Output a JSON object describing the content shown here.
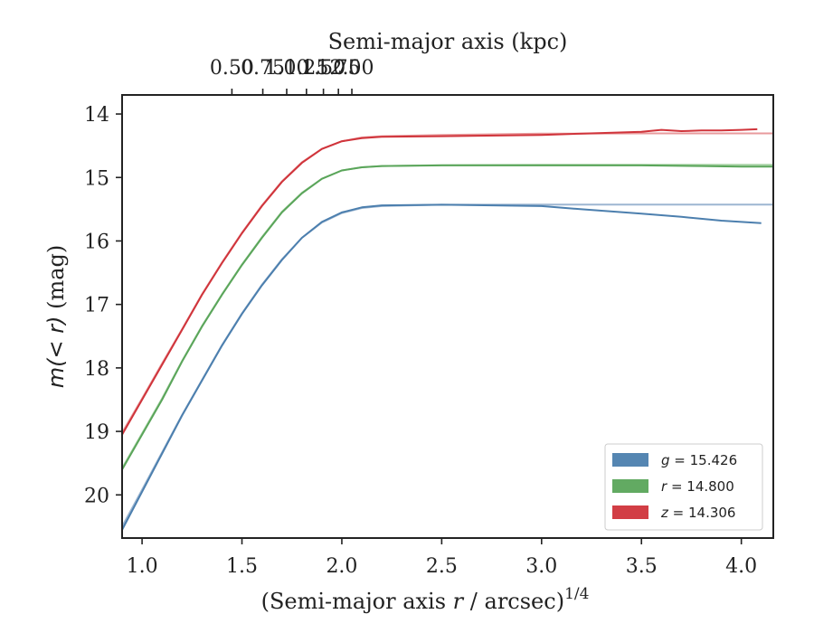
{
  "chart_data": {
    "type": "line",
    "title": "",
    "xlabel": "(Semi-major axis r / arcsec)^{1/4}",
    "xlabel_text": "(Semi-major axis",
    "xlabel_var": "r",
    "xlabel_tail": "/ arcsec)",
    "xlabel_sup": "1/4",
    "ylabel": "m(<r) (mag)",
    "ylabel_math": "m(< r)",
    "ylabel_unit": "(mag)",
    "top_xlabel": "Semi-major axis (kpc)",
    "xlim": [
      0.9,
      4.16
    ],
    "ylim": [
      20.68,
      13.7
    ],
    "y_inverted": true,
    "xticks": [
      1.0,
      1.5,
      2.0,
      2.5,
      3.0,
      3.5,
      4.0
    ],
    "xtick_labels": [
      "1.0",
      "1.5",
      "2.0",
      "2.5",
      "3.0",
      "3.5",
      "4.0"
    ],
    "yticks": [
      14,
      15,
      16,
      17,
      18,
      19,
      20
    ],
    "ytick_labels": [
      "14",
      "15",
      "16",
      "17",
      "18",
      "19",
      "20"
    ],
    "top_xticks": [
      0.5,
      0.75,
      1.0,
      1.25,
      1.5,
      1.75,
      2.0
    ],
    "top_xtick_labels": [
      "0.50",
      "0.75",
      "1.00",
      "1.25",
      "1.50",
      "1.75",
      "2.00"
    ],
    "top_axis_scale_kpc_per_arcsec": 0.1132,
    "grid": false,
    "legend_position": "lower-right",
    "series": [
      {
        "name": "g = 15.426",
        "band": "g",
        "total_mag": "15.426",
        "color": "#4c7fae",
        "fit_color": "#9db6d1",
        "x": [
          0.9,
          1.0,
          1.1,
          1.2,
          1.3,
          1.4,
          1.5,
          1.6,
          1.7,
          1.8,
          1.9,
          2.0,
          2.1,
          2.2,
          2.5,
          3.0,
          3.2,
          3.5,
          3.7,
          3.9,
          4.0,
          4.1
        ],
        "values": [
          20.55,
          19.95,
          19.35,
          18.75,
          18.2,
          17.65,
          17.15,
          16.7,
          16.3,
          15.95,
          15.7,
          15.55,
          15.47,
          15.44,
          15.43,
          15.45,
          15.5,
          15.57,
          15.62,
          15.68,
          15.7,
          15.72
        ],
        "fit_x": [
          0.9,
          1.0,
          1.1,
          1.2,
          1.3,
          1.4,
          1.5,
          1.6,
          1.7,
          1.8,
          1.9,
          2.0,
          2.1,
          2.2,
          2.5,
          3.0,
          3.5,
          4.16
        ],
        "fit_values": [
          20.5,
          19.92,
          19.33,
          18.74,
          18.19,
          17.64,
          17.14,
          16.69,
          16.29,
          15.95,
          15.71,
          15.56,
          15.48,
          15.45,
          15.43,
          15.426,
          15.426,
          15.426
        ]
      },
      {
        "name": "r = 14.800",
        "band": "r",
        "total_mag": "14.800",
        "color": "#5aa55a",
        "fit_color": "#a8d3a6",
        "x": [
          0.9,
          1.0,
          1.1,
          1.2,
          1.3,
          1.4,
          1.5,
          1.6,
          1.7,
          1.8,
          1.9,
          2.0,
          2.1,
          2.2,
          2.5,
          3.0,
          3.5,
          3.8,
          4.0,
          4.16
        ],
        "values": [
          19.6,
          19.05,
          18.5,
          17.9,
          17.35,
          16.85,
          16.38,
          15.95,
          15.55,
          15.25,
          15.02,
          14.89,
          14.84,
          14.82,
          14.81,
          14.81,
          14.81,
          14.82,
          14.83,
          14.83
        ],
        "fit_x": [
          0.9,
          1.0,
          1.1,
          1.2,
          1.3,
          1.4,
          1.5,
          1.6,
          1.7,
          1.8,
          1.9,
          2.0,
          2.1,
          2.2,
          2.5,
          3.0,
          3.5,
          4.16
        ],
        "fit_values": [
          19.58,
          19.03,
          18.48,
          17.89,
          17.34,
          16.84,
          16.37,
          15.94,
          15.54,
          15.24,
          15.02,
          14.89,
          14.84,
          14.82,
          14.805,
          14.8,
          14.8,
          14.8
        ]
      },
      {
        "name": "z = 14.306",
        "band": "z",
        "total_mag": "14.306",
        "color": "#d0343b",
        "fit_color": "#e89a9c",
        "x": [
          0.9,
          1.0,
          1.1,
          1.2,
          1.3,
          1.4,
          1.5,
          1.6,
          1.7,
          1.8,
          1.9,
          2.0,
          2.1,
          2.2,
          2.5,
          3.0,
          3.3,
          3.5,
          3.6,
          3.7,
          3.8,
          3.9,
          4.0,
          4.08
        ],
        "values": [
          19.05,
          18.5,
          17.95,
          17.4,
          16.85,
          16.35,
          15.88,
          15.45,
          15.07,
          14.77,
          14.55,
          14.43,
          14.38,
          14.36,
          14.35,
          14.33,
          14.3,
          14.28,
          14.25,
          14.27,
          14.26,
          14.26,
          14.25,
          14.24
        ],
        "fit_x": [
          0.9,
          1.0,
          1.1,
          1.2,
          1.3,
          1.4,
          1.5,
          1.6,
          1.7,
          1.8,
          1.9,
          2.0,
          2.1,
          2.2,
          2.5,
          3.0,
          3.5,
          4.16
        ],
        "fit_values": [
          19.02,
          18.48,
          17.93,
          17.39,
          16.84,
          16.34,
          15.87,
          15.44,
          15.06,
          14.76,
          14.55,
          14.43,
          14.37,
          14.35,
          14.33,
          14.31,
          14.306,
          14.306
        ]
      }
    ]
  }
}
